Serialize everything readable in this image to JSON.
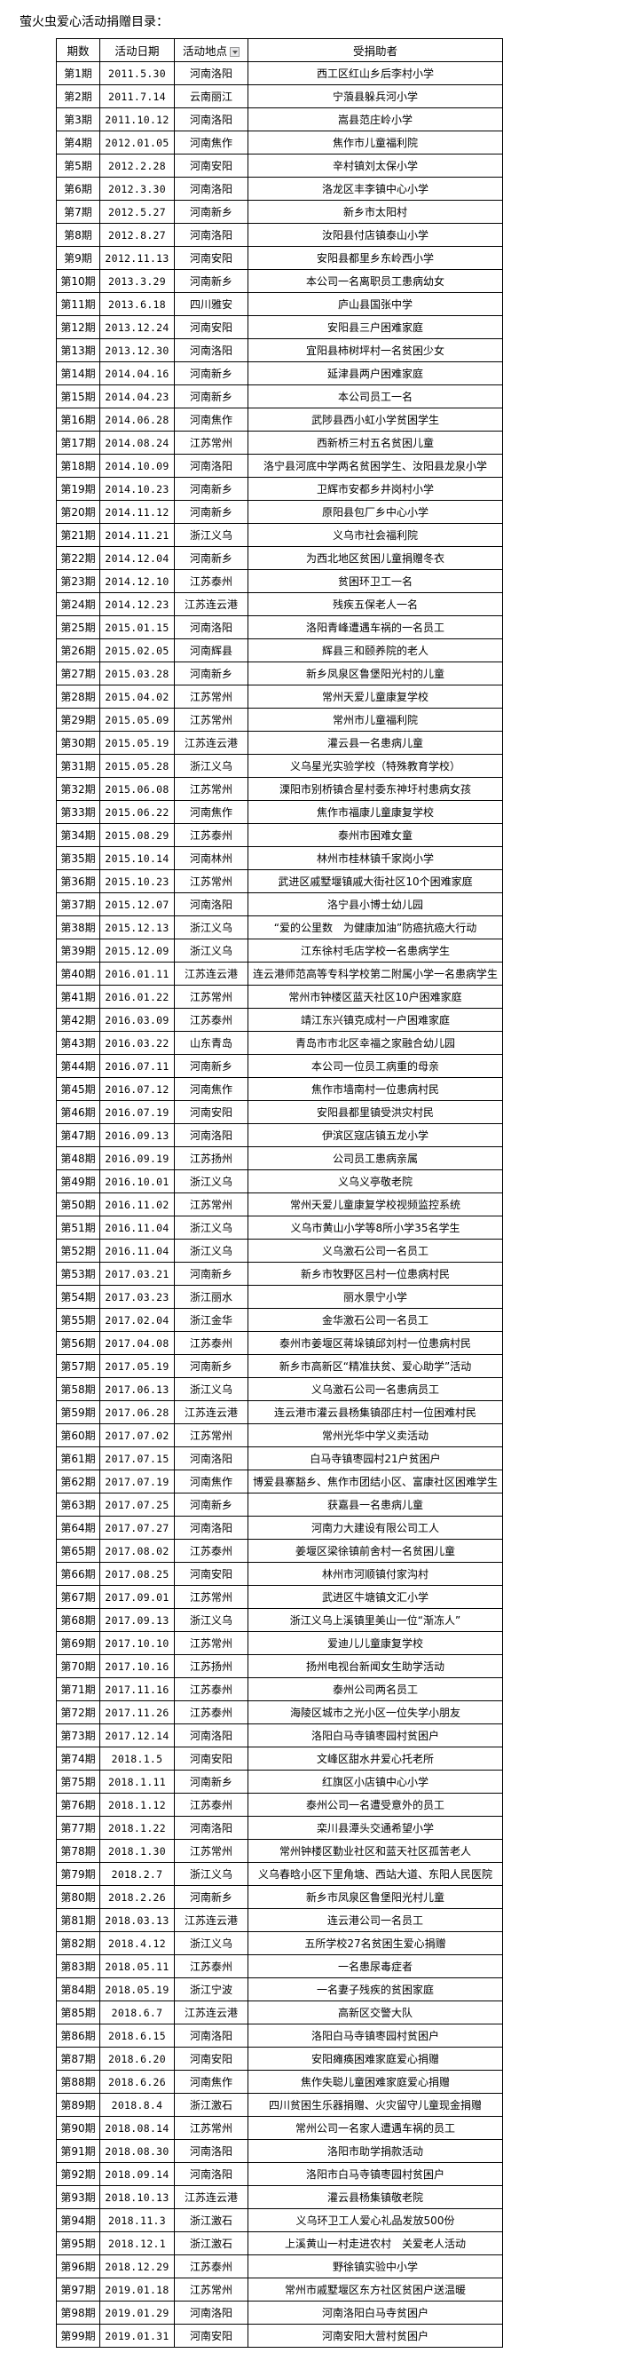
{
  "title": "萤火虫爱心活动捐赠目录：",
  "table": {
    "headers": [
      "期数",
      "活动日期",
      "活动地点",
      "受捐助者"
    ],
    "rows": [
      [
        "第1期",
        "2011.5.30",
        "河南洛阳",
        "西工区红山乡后李村小学"
      ],
      [
        "第2期",
        "2011.7.14",
        "云南丽江",
        "宁蒗县躲兵河小学"
      ],
      [
        "第3期",
        "2011.10.12",
        "河南洛阳",
        "嵩县范庄岭小学"
      ],
      [
        "第4期",
        "2012.01.05",
        "河南焦作",
        "焦作市儿童福利院"
      ],
      [
        "第5期",
        "2012.2.28",
        "河南安阳",
        "辛村镇刘太保小学"
      ],
      [
        "第6期",
        "2012.3.30",
        "河南洛阳",
        "洛龙区丰李镇中心小学"
      ],
      [
        "第7期",
        "2012.5.27",
        "河南新乡",
        "新乡市太阳村"
      ],
      [
        "第8期",
        "2012.8.27",
        "河南洛阳",
        "汝阳县付店镇泰山小学"
      ],
      [
        "第9期",
        "2012.11.13",
        "河南安阳",
        "安阳县都里乡东岭西小学"
      ],
      [
        "第10期",
        "2013.3.29",
        "河南新乡",
        "本公司一名离职员工患病幼女"
      ],
      [
        "第11期",
        "2013.6.18",
        "四川雅安",
        "庐山县国张中学"
      ],
      [
        "第12期",
        "2013.12.24",
        "河南安阳",
        "安阳县三户困难家庭"
      ],
      [
        "第13期",
        "2013.12.30",
        "河南洛阳",
        "宜阳县柿树坪村一名贫困少女"
      ],
      [
        "第14期",
        "2014.04.16",
        "河南新乡",
        "延津县两户困难家庭"
      ],
      [
        "第15期",
        "2014.04.23",
        "河南新乡",
        "本公司员工一名"
      ],
      [
        "第16期",
        "2014.06.28",
        "河南焦作",
        "武陟县西小虹小学贫困学生"
      ],
      [
        "第17期",
        "2014.08.24",
        "江苏常州",
        "西新桥三村五名贫困儿童"
      ],
      [
        "第18期",
        "2014.10.09",
        "河南洛阳",
        "洛宁县河底中学两名贫困学生、汝阳县龙泉小学"
      ],
      [
        "第19期",
        "2014.10.23",
        "河南新乡",
        "卫辉市安都乡井岗村小学"
      ],
      [
        "第20期",
        "2014.11.12",
        "河南新乡",
        "原阳县包厂乡中心小学"
      ],
      [
        "第21期",
        "2014.11.21",
        "浙江义乌",
        "义乌市社会福利院"
      ],
      [
        "第22期",
        "2014.12.04",
        "河南新乡",
        "为西北地区贫困儿童捐赠冬衣"
      ],
      [
        "第23期",
        "2014.12.10",
        "江苏泰州",
        "贫困环卫工一名"
      ],
      [
        "第24期",
        "2014.12.23",
        "江苏连云港",
        "残疾五保老人一名"
      ],
      [
        "第25期",
        "2015.01.15",
        "河南洛阳",
        "洛阳青峰遭遇车祸的一名员工"
      ],
      [
        "第26期",
        "2015.02.05",
        "河南辉县",
        "辉县三和颐养院的老人"
      ],
      [
        "第27期",
        "2015.03.28",
        "河南新乡",
        "新乡凤泉区鲁堡阳光村的儿童"
      ],
      [
        "第28期",
        "2015.04.02",
        "江苏常州",
        "常州天爱儿童康复学校"
      ],
      [
        "第29期",
        "2015.05.09",
        "江苏常州",
        "常州市儿童福利院"
      ],
      [
        "第30期",
        "2015.05.19",
        "江苏连云港",
        "灌云县一名患病儿童"
      ],
      [
        "第31期",
        "2015.05.28",
        "浙江义乌",
        "义乌星光实验学校（特殊教育学校）"
      ],
      [
        "第32期",
        "2015.06.08",
        "江苏常州",
        "溧阳市别桥镇合星村委东神圩村患病女孩"
      ],
      [
        "第33期",
        "2015.06.22",
        "河南焦作",
        "焦作市福康儿童康复学校"
      ],
      [
        "第34期",
        "2015.08.29",
        "江苏泰州",
        "泰州市困难女童"
      ],
      [
        "第35期",
        "2015.10.14",
        "河南林州",
        "林州市桂林镇千家岗小学"
      ],
      [
        "第36期",
        "2015.10.23",
        "江苏常州",
        "武进区戚墅堰镇戚大街社区10个困难家庭"
      ],
      [
        "第37期",
        "2015.12.07",
        "河南洛阳",
        "洛宁县小博士幼儿园"
      ],
      [
        "第38期",
        "2015.12.13",
        "浙江义乌",
        "“爱的公里数　为健康加油”防癌抗癌大行动"
      ],
      [
        "第39期",
        "2015.12.09",
        "浙江义乌",
        "江东徐村毛店学校一名患病学生"
      ],
      [
        "第40期",
        "2016.01.11",
        "江苏连云港",
        "连云港师范高等专科学校第二附属小学一名患病学生"
      ],
      [
        "第41期",
        "2016.01.22",
        "江苏常州",
        "常州市钟楼区蓝天社区10户困难家庭"
      ],
      [
        "第42期",
        "2016.03.09",
        "江苏泰州",
        "靖江东兴镇克成村一户困难家庭"
      ],
      [
        "第43期",
        "2016.03.22",
        "山东青岛",
        "青岛市市北区幸福之家融合幼儿园"
      ],
      [
        "第44期",
        "2016.07.11",
        "河南新乡",
        "本公司一位员工病重的母亲"
      ],
      [
        "第45期",
        "2016.07.12",
        "河南焦作",
        "焦作市墙南村一位患病村民"
      ],
      [
        "第46期",
        "2016.07.19",
        "河南安阳",
        "安阳县都里镇受洪灾村民"
      ],
      [
        "第47期",
        "2016.09.13",
        "河南洛阳",
        "伊滨区寇店镇五龙小学"
      ],
      [
        "第48期",
        "2016.09.19",
        "江苏扬州",
        "公司员工患病亲属"
      ],
      [
        "第49期",
        "2016.10.01",
        "浙江义乌",
        "义乌义亭敬老院"
      ],
      [
        "第50期",
        "2016.11.02",
        "江苏常州",
        "常州天爱儿童康复学校视频监控系统"
      ],
      [
        "第51期",
        "2016.11.04",
        "浙江义乌",
        "义乌市黄山小学等8所小学35名学生"
      ],
      [
        "第52期",
        "2016.11.04",
        "浙江义乌",
        "义乌激石公司一名员工"
      ],
      [
        "第53期",
        "2017.03.21",
        "河南新乡",
        "新乡市牧野区吕村一位患病村民"
      ],
      [
        "第54期",
        "2017.03.23",
        "浙江丽水",
        "丽水景宁小学"
      ],
      [
        "第55期",
        "2017.02.04",
        "浙江金华",
        "金华激石公司一名员工"
      ],
      [
        "第56期",
        "2017.04.08",
        "江苏泰州",
        "泰州市姜堰区蒋垛镇邱刘村一位患病村民"
      ],
      [
        "第57期",
        "2017.05.19",
        "河南新乡",
        "新乡市高新区“精准扶贫、爱心助学”活动"
      ],
      [
        "第58期",
        "2017.06.13",
        "浙江义乌",
        "义乌激石公司一名患病员工"
      ],
      [
        "第59期",
        "2017.06.28",
        "江苏连云港",
        "连云港市灌云县杨集镇邵庄村一位困难村民"
      ],
      [
        "第60期",
        "2017.07.02",
        "江苏常州",
        "常州光华中学义卖活动"
      ],
      [
        "第61期",
        "2017.07.15",
        "河南洛阳",
        "白马寺镇枣园村21户贫困户"
      ],
      [
        "第62期",
        "2017.07.19",
        "河南焦作",
        "博爱县寨豁乡、焦作市团结小区、富康社区困难学生"
      ],
      [
        "第63期",
        "2017.07.25",
        "河南新乡",
        "获嘉县一名患病儿童"
      ],
      [
        "第64期",
        "2017.07.27",
        "河南洛阳",
        "河南力大建设有限公司工人"
      ],
      [
        "第65期",
        "2017.08.02",
        "江苏泰州",
        "姜堰区梁徐镇前舍村一名贫困儿童"
      ],
      [
        "第66期",
        "2017.08.25",
        "河南安阳",
        "林州市河顺镇付家沟村"
      ],
      [
        "第67期",
        "2017.09.01",
        "江苏常州",
        "武进区牛塘镇文汇小学"
      ],
      [
        "第68期",
        "2017.09.13",
        "浙江义乌",
        "浙江义乌上溪镇里美山一位“渐冻人”"
      ],
      [
        "第69期",
        "2017.10.10",
        "江苏常州",
        "爱迪儿儿童康复学校"
      ],
      [
        "第70期",
        "2017.10.16",
        "江苏扬州",
        "扬州电视台新闻女生助学活动"
      ],
      [
        "第71期",
        "2017.11.16",
        "江苏泰州",
        "泰州公司两名员工"
      ],
      [
        "第72期",
        "2017.11.26",
        "江苏泰州",
        "海陵区城市之光小区一位失学小朋友"
      ],
      [
        "第73期",
        "2017.12.14",
        "河南洛阳",
        "洛阳白马寺镇枣园村贫困户"
      ],
      [
        "第74期",
        "2018.1.5",
        "河南安阳",
        "文峰区甜水井爱心托老所"
      ],
      [
        "第75期",
        "2018.1.11",
        "河南新乡",
        "红旗区小店镇中心小学"
      ],
      [
        "第76期",
        "2018.1.12",
        "江苏泰州",
        "泰州公司一名遭受意外的员工"
      ],
      [
        "第77期",
        "2018.1.22",
        "河南洛阳",
        "栾川县潭头交通希望小学"
      ],
      [
        "第78期",
        "2018.1.30",
        "江苏常州",
        "常州钟楼区勤业社区和蓝天社区孤苦老人"
      ],
      [
        "第79期",
        "2018.2.7",
        "浙江义乌",
        "义乌春晗小区下里角塘、西站大道、东阳人民医院"
      ],
      [
        "第80期",
        "2018.2.26",
        "河南新乡",
        "新乡市凤泉区鲁堡阳光村儿童"
      ],
      [
        "第81期",
        "2018.03.13",
        "江苏连云港",
        "连云港公司一名员工"
      ],
      [
        "第82期",
        "2018.4.12",
        "浙江义乌",
        "五所学校27名贫困生爱心捐赠"
      ],
      [
        "第83期",
        "2018.05.11",
        "江苏泰州",
        "一名患尿毒症者"
      ],
      [
        "第84期",
        "2018.05.19",
        "浙江宁波",
        "一名妻子残疾的贫困家庭"
      ],
      [
        "第85期",
        "2018.6.7",
        "江苏连云港",
        "高新区交警大队"
      ],
      [
        "第86期",
        "2018.6.15",
        "河南洛阳",
        "洛阳白马寺镇枣园村贫困户"
      ],
      [
        "第87期",
        "2018.6.20",
        "河南安阳",
        "安阳瘫痪困难家庭爱心捐赠"
      ],
      [
        "第88期",
        "2018.6.26",
        "河南焦作",
        "焦作失聪儿童困难家庭爱心捐赠"
      ],
      [
        "第89期",
        "2018.8.4",
        "浙江激石",
        "四川贫困生乐器捐赠、火灾留守儿童现金捐赠"
      ],
      [
        "第90期",
        "2018.08.14",
        "江苏常州",
        "常州公司一名家人遭遇车祸的员工"
      ],
      [
        "第91期",
        "2018.08.30",
        "河南洛阳",
        "洛阳市助学捐款活动"
      ],
      [
        "第92期",
        "2018.09.14",
        "河南洛阳",
        "洛阳市白马寺镇枣园村贫困户"
      ],
      [
        "第93期",
        "2018.10.13",
        "江苏连云港",
        "灌云县杨集镇敬老院"
      ],
      [
        "第94期",
        "2018.11.3",
        "浙江激石",
        "义乌环卫工人爱心礼品发放500份"
      ],
      [
        "第95期",
        "2018.12.1",
        "浙江激石",
        "上溪黄山一村走进农村　关爱老人活动"
      ],
      [
        "第96期",
        "2018.12.29",
        "江苏泰州",
        "野徐镇实验中小学"
      ],
      [
        "第97期",
        "2019.01.18",
        "江苏常州",
        "常州市戚墅堰区东方社区贫困户送温暖"
      ],
      [
        "第98期",
        "2019.01.29",
        "河南洛阳",
        "河南洛阳白马寺贫困户"
      ],
      [
        "第99期",
        "2019.01.31",
        "河南安阳",
        "河南安阳大营村贫困户"
      ]
    ]
  },
  "icons": {
    "filter": "dropdown-filter-icon"
  }
}
